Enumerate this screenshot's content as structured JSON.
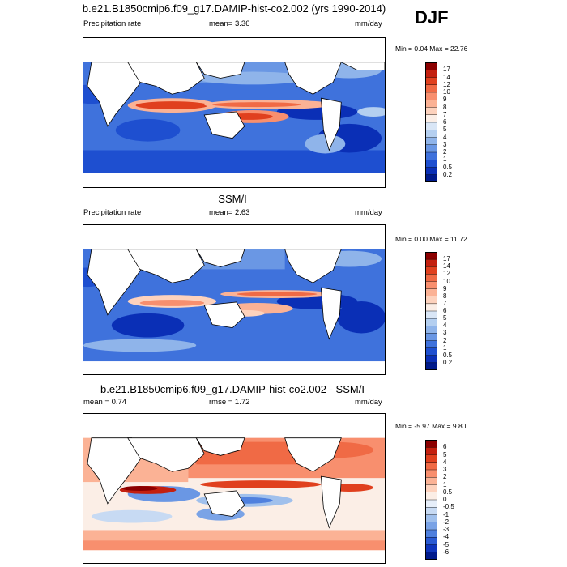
{
  "season": "DJF",
  "panels": [
    {
      "id": "model",
      "title": "b.e21.B1850cmip6.f09_g17.DAMIP-hist-co2.002 (yrs 1990-2014)",
      "left_label": "Precipitation rate",
      "center_label": "mean=   3.36",
      "right_label": "mm/day",
      "minmax": "Min =   0.04 Max =  22.76",
      "colorbar_labels": [
        "17",
        "14",
        "12",
        "10",
        "9",
        "8",
        "7",
        "6",
        "5",
        "4",
        "3",
        "2",
        "1",
        "0.5",
        "0.2"
      ],
      "colors": [
        "#8b0000",
        "#c4200f",
        "#e0401e",
        "#f06a45",
        "#f88f6e",
        "#fbb295",
        "#fdd2bd",
        "#fbeee6",
        "#d9e6f6",
        "#b4cff0",
        "#8fb4ea",
        "#6a97e4",
        "#3f72dc",
        "#1e4fd0",
        "#0a2fb6",
        "#001a8c"
      ]
    },
    {
      "id": "obs",
      "title": "SSM/I",
      "left_label": "Precipitation rate",
      "center_label": "mean=   2.63",
      "right_label": "mm/day",
      "minmax": "Min =   0.00 Max =  11.72",
      "colorbar_labels": [
        "17",
        "14",
        "12",
        "10",
        "9",
        "8",
        "7",
        "6",
        "5",
        "4",
        "3",
        "2",
        "1",
        "0.5",
        "0.2"
      ],
      "colors": [
        "#8b0000",
        "#c4200f",
        "#e0401e",
        "#f06a45",
        "#f88f6e",
        "#fbb295",
        "#fdd2bd",
        "#fbeee6",
        "#d9e6f6",
        "#b4cff0",
        "#8fb4ea",
        "#6a97e4",
        "#3f72dc",
        "#1e4fd0",
        "#0a2fb6",
        "#001a8c"
      ]
    },
    {
      "id": "diff",
      "title": "b.e21.B1850cmip6.f09_g17.DAMIP-hist-co2.002 - SSM/I",
      "left_label": "mean =   0.74",
      "center_label": "rmse =   1.72",
      "right_label": "mm/day",
      "minmax": "Min =  -5.97 Max =   9.80",
      "colorbar_labels": [
        "6",
        "5",
        "4",
        "3",
        "2",
        "1",
        "0.5",
        "0",
        "-0.5",
        "-1",
        "-2",
        "-3",
        "-4",
        "-5",
        "-6"
      ],
      "colors": [
        "#8b0000",
        "#c4200f",
        "#e0401e",
        "#f06a45",
        "#f88f6e",
        "#fbb295",
        "#fdd2bd",
        "#fbeee6",
        "#e6eef9",
        "#c7daf3",
        "#a0c0ec",
        "#7aa3e6",
        "#4f80de",
        "#2a5ad3",
        "#0f35bc",
        "#001a8c"
      ]
    }
  ]
}
